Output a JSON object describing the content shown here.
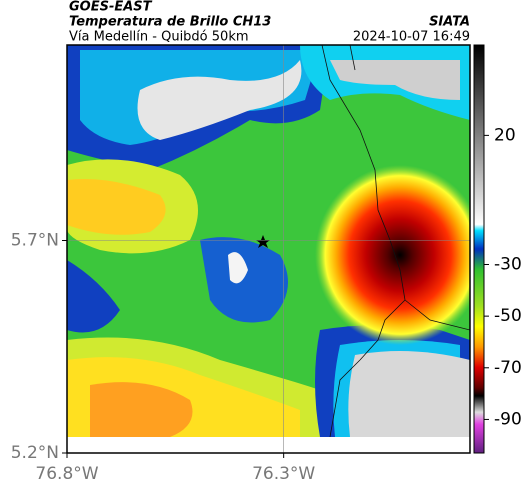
{
  "header": {
    "title": "GOES-EAST",
    "subtitle": "Temperatura de Brillo CH13",
    "region": "Vía Medellín - Quibdó 50km",
    "source": "SIATA",
    "datetime": "2024-10-07 16:49"
  },
  "map": {
    "xlim": [
      -76.8,
      -75.87
    ],
    "ylim": [
      5.2,
      6.16
    ],
    "xticks": [
      {
        "value": -76.8,
        "label": "76.8°W"
      },
      {
        "value": -76.3,
        "label": "76.3°W"
      }
    ],
    "yticks": [
      {
        "value": 5.7,
        "label": "5.7°N"
      },
      {
        "value": 5.2,
        "label": "5.2°N"
      }
    ]
  },
  "colorbar": {
    "clim": [
      -103,
      55
    ],
    "ticks": [
      20,
      -30,
      -50,
      -70,
      -90
    ]
  }
}
